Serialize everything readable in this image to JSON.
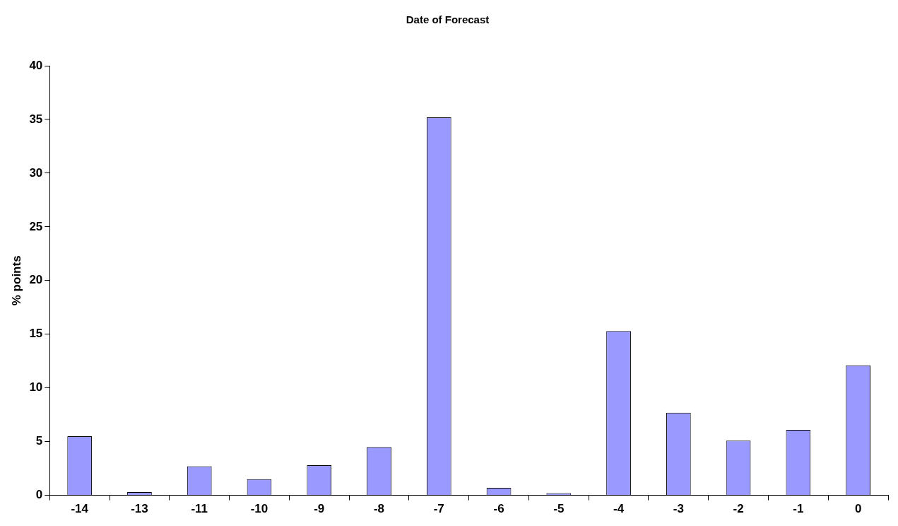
{
  "chart_data": {
    "type": "bar",
    "title": "Date of Forecast",
    "ylabel": "% points",
    "categories": [
      "-14",
      "-13",
      "-11",
      "-10",
      "-9",
      "-8",
      "-7",
      "-6",
      "-5",
      "-4",
      "-3",
      "-2",
      "-1",
      "0"
    ],
    "values": [
      5.5,
      0.3,
      2.7,
      1.5,
      2.8,
      4.5,
      35.2,
      0.7,
      0.2,
      15.3,
      7.7,
      5.1,
      6.1,
      12.1
    ],
    "color": "#9999ff",
    "ylim": [
      0,
      40
    ],
    "yticks": [
      0,
      5,
      10,
      15,
      20,
      25,
      30,
      35,
      40
    ],
    "grid": false,
    "legend": false
  }
}
